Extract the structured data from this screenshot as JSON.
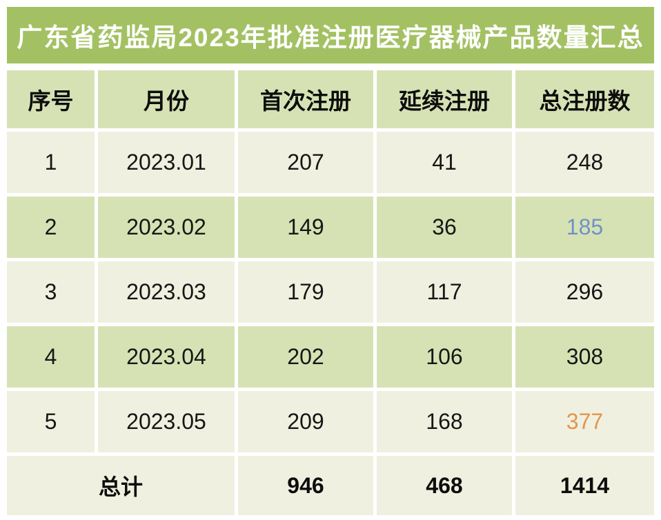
{
  "title": "广东省药监局2023年批准注册医疗器械产品数量汇总",
  "table": {
    "columns": [
      "序号",
      "月份",
      "首次注册",
      "延续注册",
      "总注册数"
    ],
    "rows": [
      {
        "no": "1",
        "month": "2023.01",
        "first_reg": "207",
        "renewal_reg": "41",
        "total_reg": "248",
        "highlight": "none"
      },
      {
        "no": "2",
        "month": "2023.02",
        "first_reg": "149",
        "renewal_reg": "36",
        "total_reg": "185",
        "highlight": "blue"
      },
      {
        "no": "3",
        "month": "2023.03",
        "first_reg": "179",
        "renewal_reg": "117",
        "total_reg": "296",
        "highlight": "none"
      },
      {
        "no": "4",
        "month": "2023.04",
        "first_reg": "202",
        "renewal_reg": "106",
        "total_reg": "308",
        "highlight": "none"
      },
      {
        "no": "5",
        "month": "2023.05",
        "first_reg": "209",
        "renewal_reg": "168",
        "total_reg": "377",
        "highlight": "orange"
      }
    ],
    "footer": {
      "label": "总计",
      "first_reg": "946",
      "renewal_reg": "468",
      "total_reg": "1414"
    }
  },
  "colors": {
    "title_bg": "#a3c162",
    "header_bg": "#d6e2b4",
    "row_green": "#d6e2b4",
    "row_cream": "#f0f0e0",
    "highlight_blue": "#6f93c6",
    "highlight_orange": "#e2964f"
  },
  "chart_data": {
    "type": "table",
    "title": "广东省药监局2023年批准注册医疗器械产品数量汇总",
    "columns": [
      "序号",
      "月份",
      "首次注册",
      "延续注册",
      "总注册数"
    ],
    "rows": [
      [
        1,
        "2023.01",
        207,
        41,
        248
      ],
      [
        2,
        "2023.02",
        149,
        36,
        185
      ],
      [
        3,
        "2023.03",
        179,
        117,
        296
      ],
      [
        4,
        "2023.04",
        202,
        106,
        308
      ],
      [
        5,
        "2023.05",
        209,
        168,
        377
      ]
    ],
    "totals": {
      "label": "总计",
      "first_reg": 946,
      "renewal_reg": 468,
      "total_reg": 1414
    },
    "highlighted_values": [
      {
        "row": 2,
        "column": "总注册数",
        "value": 185,
        "color": "blue"
      },
      {
        "row": 5,
        "column": "总注册数",
        "value": 377,
        "color": "orange"
      }
    ],
    "grid": "white gaps between cells",
    "legend": "none"
  }
}
